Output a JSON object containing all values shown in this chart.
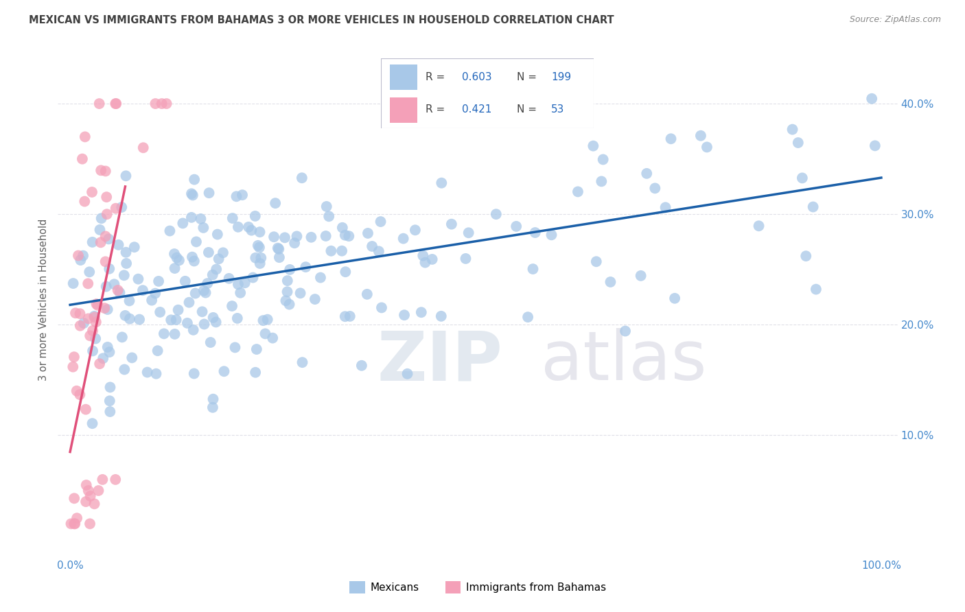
{
  "title": "MEXICAN VS IMMIGRANTS FROM BAHAMAS 3 OR MORE VEHICLES IN HOUSEHOLD CORRELATION CHART",
  "source": "Source: ZipAtlas.com",
  "ylabel": "3 or more Vehicles in Household",
  "color_blue": "#a8c8e8",
  "color_pink": "#f4a0b8",
  "trend_blue": "#1a5fa8",
  "trend_pink": "#e0507a",
  "mexicans_label": "Mexicans",
  "bahamas_label": "Immigrants from Bahamas",
  "watermark_zip_color": "#d0dce8",
  "watermark_atlas_color": "#d0c8d8",
  "grid_color": "#e0e0e8",
  "title_color": "#404040",
  "source_color": "#888888",
  "ylabel_color": "#606060",
  "tick_color": "#4488cc",
  "legend_border": "#cccccc",
  "legend_bg": "#ffffff"
}
